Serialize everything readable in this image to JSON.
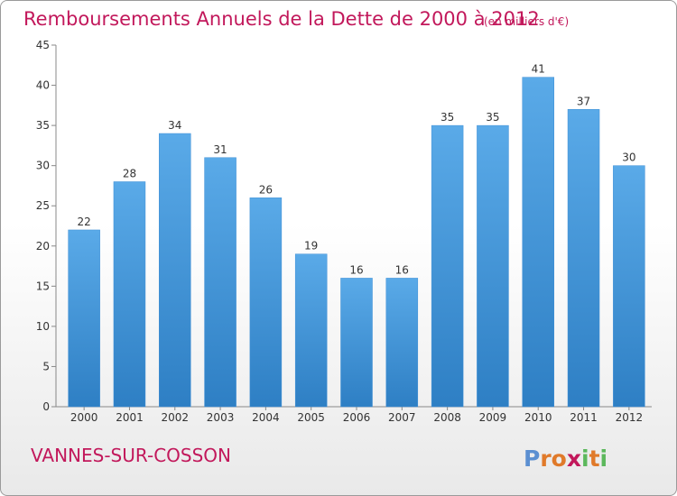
{
  "chart_data": {
    "type": "bar",
    "title": "Remboursements Annuels de la Dette de 2000 à 2012",
    "subtitle": "(en milliers d'€)",
    "categories": [
      "2000",
      "2001",
      "2002",
      "2003",
      "2004",
      "2005",
      "2006",
      "2007",
      "2008",
      "2009",
      "2010",
      "2011",
      "2012"
    ],
    "values": [
      22,
      28,
      34,
      31,
      26,
      19,
      16,
      16,
      35,
      35,
      41,
      37,
      30
    ],
    "ylim": [
      0,
      45
    ],
    "yticks": [
      0,
      5,
      10,
      15,
      20,
      25,
      30,
      35,
      40,
      45
    ],
    "xlabel": "",
    "ylabel": "",
    "grid": false,
    "bar_color_top": "#5aaae8",
    "bar_color_bottom": "#2e7fc4"
  },
  "footer": {
    "commune": "VANNES-SUR-COSSON",
    "logo_letters": [
      "P",
      "r",
      "o",
      "x",
      "i",
      "t",
      "i"
    ],
    "logo_colors": [
      "#5b8fd1",
      "#e07a2a",
      "#e07a2a",
      "#c2185b",
      "#5cb85c",
      "#e07a2a",
      "#5cb85c"
    ]
  },
  "colors": {
    "title": "#c2185b",
    "axis": "#888888"
  }
}
